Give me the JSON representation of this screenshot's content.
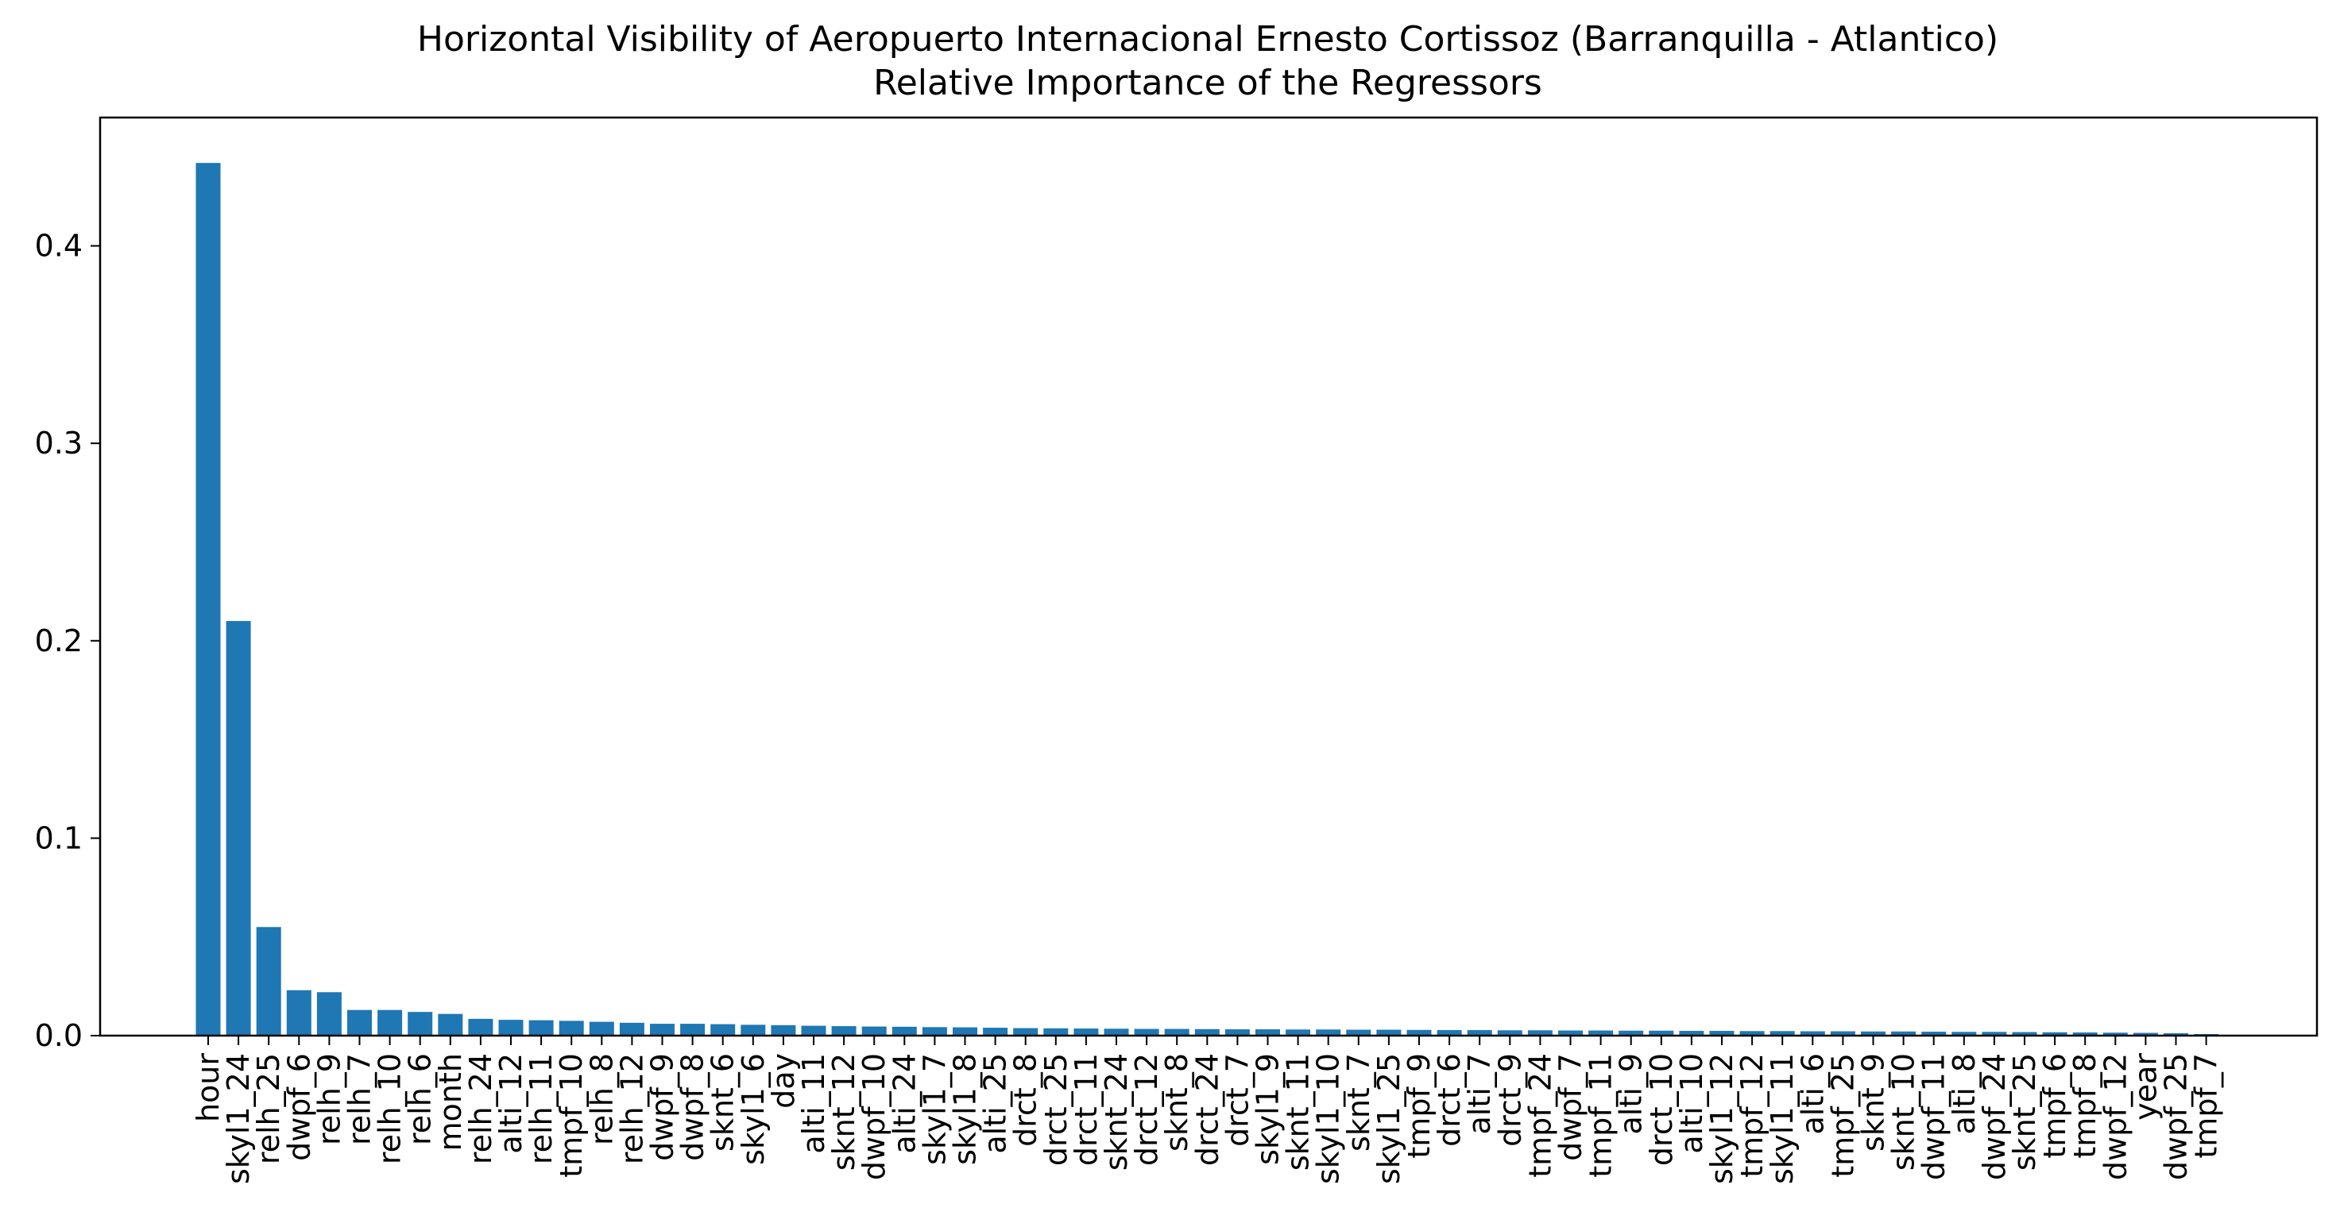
{
  "chart_data": {
    "type": "bar",
    "title": "Horizontal Visibility of Aeropuerto Internacional Ernesto Cortissoz (Barranquilla - Atlantico)",
    "subtitle": "Relative Importance of the Regressors",
    "xlabel": "",
    "ylabel": "",
    "ylim": [
      0,
      0.465
    ],
    "yticks": [
      0.0,
      0.1,
      0.2,
      0.3,
      0.4
    ],
    "ytick_labels": [
      "0.0",
      "0.1",
      "0.2",
      "0.3",
      "0.4"
    ],
    "bar_color": "#1f77b4",
    "grid": false,
    "legend": "none",
    "categories": [
      "hour",
      "skyl1_24",
      "relh_25",
      "dwpf_6",
      "relh_9",
      "relh_7",
      "relh_10",
      "relh_6",
      "month",
      "relh_24",
      "alti_12",
      "relh_11",
      "tmpf_10",
      "relh_8",
      "relh_12",
      "dwpf_9",
      "dwpf_8",
      "sknt_6",
      "skyl1_6",
      "day",
      "alti_11",
      "sknt_12",
      "dwpf_10",
      "alti_24",
      "skyl1_7",
      "skyl1_8",
      "alti_25",
      "drct_8",
      "drct_25",
      "drct_11",
      "sknt_24",
      "drct_12",
      "sknt_8",
      "drct_24",
      "drct_7",
      "skyl1_9",
      "sknt_11",
      "skyl1_10",
      "sknt_7",
      "skyl1_25",
      "tmpf_9",
      "drct_6",
      "alti_7",
      "drct_9",
      "tmpf_24",
      "dwpf_7",
      "tmpf_11",
      "alti_9",
      "drct_10",
      "alti_10",
      "skyl1_12",
      "tmpf_12",
      "skyl1_11",
      "alti_6",
      "tmpf_25",
      "sknt_9",
      "sknt_10",
      "dwpf_11",
      "alti_8",
      "dwpf_24",
      "sknt_25",
      "tmpf_6",
      "tmpf_8",
      "dwpf_12",
      "year",
      "dwpf_25",
      "tmpf_7"
    ],
    "values": [
      0.442,
      0.21,
      0.055,
      0.023,
      0.022,
      0.013,
      0.013,
      0.012,
      0.011,
      0.0085,
      0.008,
      0.0078,
      0.0075,
      0.007,
      0.0065,
      0.006,
      0.006,
      0.0058,
      0.0055,
      0.0053,
      0.005,
      0.0048,
      0.0046,
      0.0045,
      0.0043,
      0.0042,
      0.004,
      0.0038,
      0.0037,
      0.0036,
      0.0035,
      0.0034,
      0.0034,
      0.0033,
      0.0032,
      0.0032,
      0.0031,
      0.0031,
      0.003,
      0.003,
      0.0029,
      0.0028,
      0.0028,
      0.0027,
      0.0027,
      0.0026,
      0.0026,
      0.0025,
      0.0025,
      0.0024,
      0.0024,
      0.0023,
      0.0023,
      0.0022,
      0.0022,
      0.0021,
      0.0021,
      0.002,
      0.0019,
      0.0019,
      0.0018,
      0.0017,
      0.0016,
      0.0015,
      0.0014,
      0.0012,
      0.0008
    ]
  }
}
